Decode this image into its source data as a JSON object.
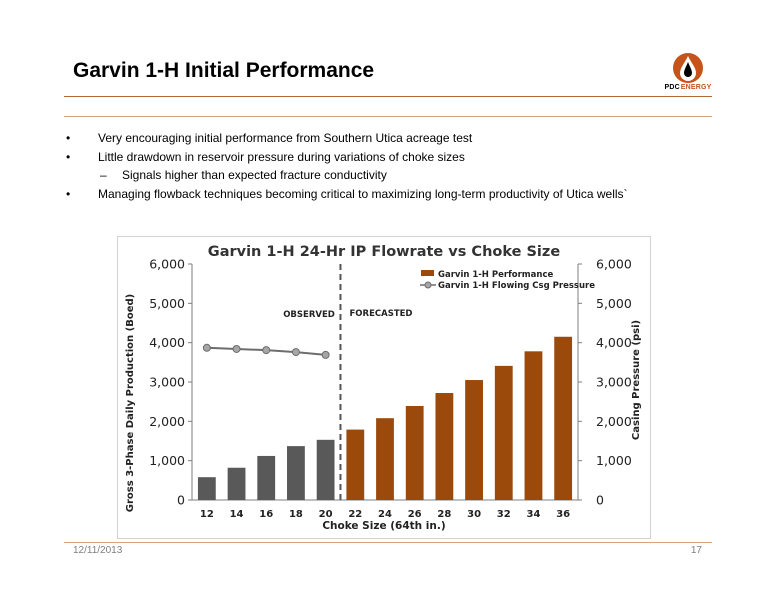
{
  "slide": {
    "title": "Garvin 1-H Initial Performance",
    "logo_text_a": "PDC",
    "logo_text_b": "ENERGY",
    "bullets": [
      "Very encouraging initial performance from Southern Utica acreage test",
      "Little drawdown in reservoir pressure during variations of choke sizes",
      "Signals higher than expected fracture conductivity",
      "Managing flowback techniques becoming critical to maximizing long-term productivity of Utica wells`"
    ],
    "bullet_marker": "•",
    "sub_marker": "–",
    "footer_date": "12/11/2013",
    "page_number": "17"
  },
  "colors": {
    "accent": "#b5653a",
    "observed_bar": "#595959",
    "forecast_bar": "#9c4a0c",
    "pressure_line": "#6d6d6d",
    "pressure_marker": "#a6a6a6"
  },
  "chart_data": {
    "type": "bar",
    "title": "Garvin 1-H 24-Hr IP Flowrate vs Choke Size",
    "xlabel": "Choke Size (64th in.)",
    "ylabel": "Gross 3-Phase Daily Production  (Boed)",
    "y2label": "Casing Pressure  (psi)",
    "ylim": [
      0,
      6000
    ],
    "y2lim": [
      0,
      6000
    ],
    "yticks": [
      "0",
      "1,000",
      "2,000",
      "3,000",
      "4,000",
      "5,000",
      "6,000"
    ],
    "y2ticks": [
      "0",
      "1,000",
      "2,000",
      "3,000",
      "4,000",
      "5,000",
      "6,000"
    ],
    "categories": [
      "12",
      "14",
      "16",
      "18",
      "20",
      "22",
      "24",
      "26",
      "28",
      "30",
      "32",
      "34",
      "36"
    ],
    "series": [
      {
        "name": "Garvin 1-H Performance",
        "type": "bar",
        "values": [
          580,
          820,
          1120,
          1370,
          1530,
          1790,
          2080,
          2390,
          2720,
          3050,
          3410,
          3780,
          4150
        ]
      },
      {
        "name": "Garvin 1-H Flowing Csg Pressure",
        "type": "line",
        "axis": "secondary",
        "values": [
          3870,
          3840,
          3810,
          3760,
          3690,
          null,
          null,
          null,
          null,
          null,
          null,
          null,
          null
        ]
      }
    ],
    "observed_count": 5,
    "annotations": [
      "OBSERVED",
      "FORECASTED"
    ],
    "legend_position": "top-right",
    "grid": false
  }
}
